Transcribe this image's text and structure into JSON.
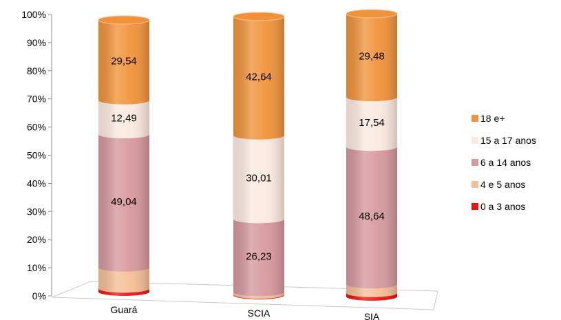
{
  "chart_data": {
    "type": "bar",
    "stacked": true,
    "percent": true,
    "categories": [
      "Guará",
      "SCIA",
      "SIA"
    ],
    "series": [
      {
        "name": "0 a 3 anos",
        "values": [
          1.2,
          0.25,
          1.3
        ],
        "color": "#ee1111",
        "labels": [
          null,
          null,
          null
        ]
      },
      {
        "name": "4 e 5 anos",
        "values": [
          7.73,
          0.87,
          3.04
        ],
        "color": "#f4bf96",
        "labels": [
          null,
          null,
          null
        ]
      },
      {
        "name": "6 a 14 anos",
        "values": [
          49.04,
          26.23,
          48.64
        ],
        "color": "#d6979d",
        "labels": [
          "49,04",
          "26,23",
          "48,64"
        ]
      },
      {
        "name": "15 a 17 anos",
        "values": [
          12.49,
          30.01,
          17.54
        ],
        "color": "#fbe9df",
        "labels": [
          "12,49",
          "30,01",
          "17,54"
        ]
      },
      {
        "name": "18 e+",
        "values": [
          29.54,
          42.64,
          29.48
        ],
        "color": "#f0923a",
        "labels": [
          "29,54",
          "42,64",
          "29,48"
        ]
      }
    ],
    "y_ticks": [
      "0%",
      "10%",
      "20%",
      "30%",
      "40%",
      "50%",
      "60%",
      "70%",
      "80%",
      "90%",
      "100%"
    ],
    "ylim": [
      0,
      100
    ],
    "grid": false,
    "legend_position": "right",
    "legend_order": [
      "18 e+",
      "15 a 17 anos",
      "6 a 14 anos",
      "4 e 5 anos",
      "0 a 3 anos"
    ],
    "title": "",
    "xlabel": "",
    "ylabel": ""
  }
}
